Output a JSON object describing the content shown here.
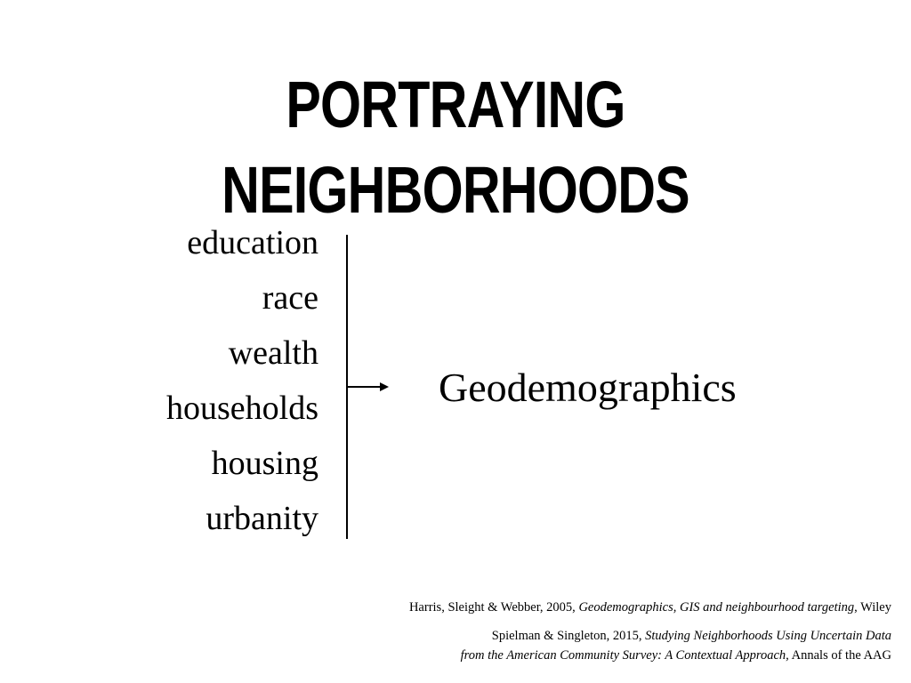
{
  "slide": {
    "title": "PORTRAYING NEIGHBORHOODS"
  },
  "diagram": {
    "inputs": [
      "education",
      "race",
      "wealth",
      "households",
      "housing",
      "urbanity"
    ],
    "output": "Geodemographics"
  },
  "references": [
    {
      "lead": "Harris, Sleight & Webber, 2005, ",
      "title": "Geodemographics, GIS and neighbourhood targeting",
      "tail": ", Wiley"
    },
    {
      "lead": "Spielman & Singleton, 2015, ",
      "title_line1": "Studying Neighborhoods Using Uncertain Data",
      "title_line2": "from the American Community Survey: A Contextual Approach,",
      "tail": " Annals of the AAG"
    }
  ]
}
